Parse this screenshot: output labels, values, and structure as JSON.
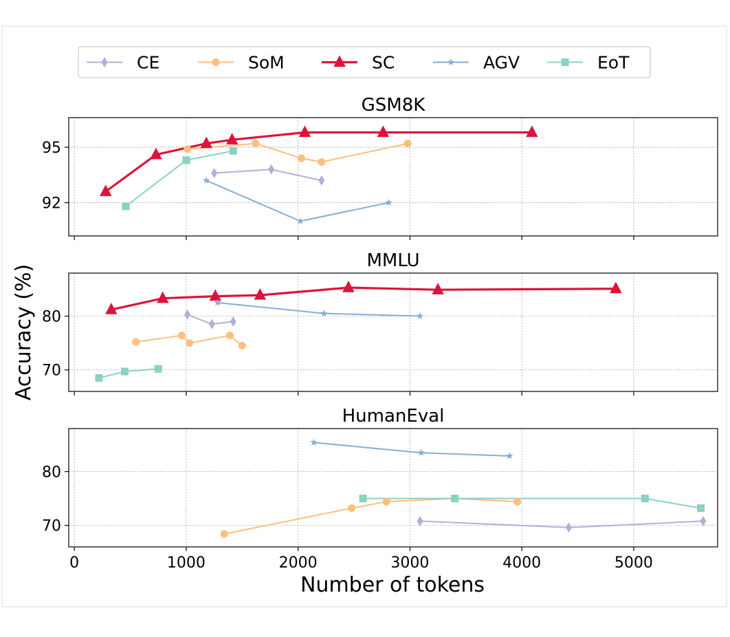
{
  "chart_data": {
    "type": "line",
    "xlabel": "Number of tokens",
    "ylabel": "Accuracy (%)",
    "xlim": [
      -50,
      5750
    ],
    "xticks": [
      0,
      1000,
      2000,
      3000,
      4000,
      5000
    ],
    "legend": {
      "position": "top",
      "entries": [
        {
          "name": "CE",
          "color": "#b5aed8",
          "marker": "diamond"
        },
        {
          "name": "SoM",
          "color": "#fcbf7d",
          "marker": "circle"
        },
        {
          "name": "SC",
          "color": "#dc143c",
          "marker": "triangle"
        },
        {
          "name": "AGV",
          "color": "#86aed4",
          "marker": "star"
        },
        {
          "name": "EoT",
          "color": "#8dd0c4",
          "marker": "square"
        }
      ]
    },
    "panels": [
      {
        "title": "GSM8K",
        "ylim": [
          90.2,
          96.6
        ],
        "yticks": [
          92,
          95
        ],
        "series": [
          {
            "name": "CE",
            "points": [
              [
                1250,
                93.6
              ],
              [
                1760,
                93.8
              ],
              [
                2210,
                93.2
              ]
            ]
          },
          {
            "name": "SoM",
            "points": [
              [
                1010,
                94.9
              ],
              [
                1620,
                95.2
              ],
              [
                2030,
                94.4
              ],
              [
                2210,
                94.2
              ],
              [
                2980,
                95.2
              ]
            ]
          },
          {
            "name": "SC",
            "points": [
              [
                280,
                92.6
              ],
              [
                730,
                94.6
              ],
              [
                1180,
                95.2
              ],
              [
                1410,
                95.4
              ],
              [
                2060,
                95.8
              ],
              [
                2760,
                95.8
              ],
              [
                4090,
                95.8
              ]
            ]
          },
          {
            "name": "AGV",
            "points": [
              [
                1180,
                93.2
              ],
              [
                2020,
                91.0
              ],
              [
                2810,
                92.0
              ]
            ]
          },
          {
            "name": "EoT",
            "points": [
              [
                460,
                91.8
              ],
              [
                1000,
                94.3
              ],
              [
                1420,
                94.8
              ]
            ]
          }
        ]
      },
      {
        "title": "MMLU",
        "ylim": [
          66,
          88
        ],
        "yticks": [
          70,
          80
        ],
        "series": [
          {
            "name": "CE",
            "points": [
              [
                1010,
                80.3
              ],
              [
                1230,
                78.5
              ],
              [
                1420,
                79.0
              ]
            ]
          },
          {
            "name": "SoM",
            "points": [
              [
                550,
                75.2
              ],
              [
                960,
                76.4
              ],
              [
                1030,
                75.0
              ],
              [
                1390,
                76.4
              ],
              [
                1500,
                74.5
              ]
            ]
          },
          {
            "name": "SC",
            "points": [
              [
                330,
                81.2
              ],
              [
                790,
                83.3
              ],
              [
                1260,
                83.7
              ],
              [
                1660,
                83.9
              ],
              [
                2450,
                85.3
              ],
              [
                3250,
                84.9
              ],
              [
                4840,
                85.1
              ]
            ]
          },
          {
            "name": "AGV",
            "points": [
              [
                1280,
                82.5
              ],
              [
                2230,
                80.5
              ],
              [
                3090,
                80.0
              ]
            ]
          },
          {
            "name": "EoT",
            "points": [
              [
                220,
                68.5
              ],
              [
                450,
                69.7
              ],
              [
                750,
                70.2
              ]
            ]
          }
        ]
      },
      {
        "title": "HumanEval",
        "ylim": [
          66,
          88
        ],
        "yticks": [
          70,
          80
        ],
        "series": [
          {
            "name": "CE",
            "points": [
              [
                3090,
                70.8
              ],
              [
                4420,
                69.6
              ],
              [
                5620,
                70.8
              ]
            ]
          },
          {
            "name": "SoM",
            "points": [
              [
                1340,
                68.4
              ],
              [
                2480,
                73.2
              ],
              [
                2790,
                74.4
              ],
              [
                3400,
                75.0
              ],
              [
                3960,
                74.4
              ]
            ]
          },
          {
            "name": "AGV",
            "points": [
              [
                2140,
                85.4
              ],
              [
                3100,
                83.5
              ],
              [
                3890,
                82.9
              ]
            ]
          },
          {
            "name": "EoT",
            "points": [
              [
                2580,
                75.0
              ],
              [
                3400,
                75.0
              ],
              [
                5100,
                75.0
              ],
              [
                5600,
                73.2
              ]
            ]
          }
        ]
      }
    ]
  }
}
